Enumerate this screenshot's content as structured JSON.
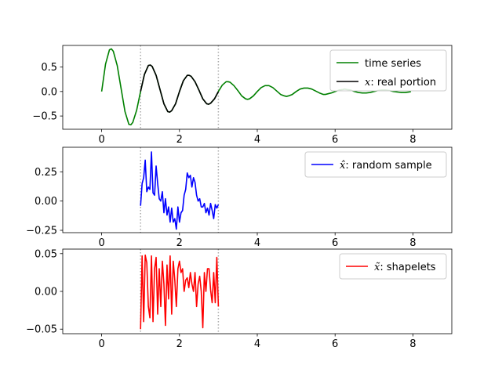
{
  "chart_data": [
    {
      "type": "line",
      "xlim": [
        -1,
        9
      ],
      "ylim": [
        -0.77,
        0.94
      ],
      "xticks": [
        0,
        2,
        4,
        6,
        8
      ],
      "xtick_labels": [
        "0",
        "2",
        "4",
        "6",
        "8"
      ],
      "yticks": [
        -0.5,
        0.0,
        0.5
      ],
      "ytick_labels": [
        "−0.5",
        "0.0",
        "0.5"
      ],
      "vlines": [
        1,
        3
      ],
      "legend_position": "upper right",
      "series": [
        {
          "name": "time series",
          "color": "#008000",
          "x": [
            0,
            0.1,
            0.2,
            0.25,
            0.3,
            0.4,
            0.5,
            0.6,
            0.7,
            0.75,
            0.8,
            0.9,
            1.0,
            1.1,
            1.2,
            1.25,
            1.3,
            1.4,
            1.5,
            1.6,
            1.7,
            1.75,
            1.8,
            1.9,
            2.0,
            2.1,
            2.2,
            2.25,
            2.3,
            2.4,
            2.5,
            2.6,
            2.7,
            2.75,
            2.8,
            2.9,
            3.0,
            3.1,
            3.2,
            3.25,
            3.3,
            3.4,
            3.5,
            3.6,
            3.7,
            3.75,
            3.8,
            3.9,
            4.0,
            4.1,
            4.2,
            4.25,
            4.3,
            4.4,
            4.5,
            4.6,
            4.7,
            4.75,
            4.8,
            4.9,
            5.0,
            5.1,
            5.2,
            5.25,
            5.3,
            5.4,
            5.5,
            5.6,
            5.7,
            5.75,
            5.8,
            5.9,
            6.0,
            6.1,
            6.2,
            6.25,
            6.3,
            6.4,
            6.5,
            6.6,
            6.7,
            6.75,
            6.8,
            6.9,
            7.0,
            7.1,
            7.2,
            7.25,
            7.3,
            7.4,
            7.5,
            7.6,
            7.7,
            7.75,
            7.8,
            7.9,
            7.95
          ],
          "y": [
            0,
            0.56,
            0.85,
            0.87,
            0.82,
            0.53,
            0.06,
            -0.41,
            -0.67,
            -0.68,
            -0.63,
            -0.38,
            0,
            0.35,
            0.53,
            0.54,
            0.51,
            0.33,
            0.04,
            -0.25,
            -0.41,
            -0.42,
            -0.39,
            -0.25,
            0,
            0.22,
            0.33,
            0.33,
            0.31,
            0.2,
            0.03,
            -0.15,
            -0.25,
            -0.26,
            -0.24,
            -0.15,
            0,
            0.13,
            0.2,
            0.2,
            0.19,
            0.12,
            0.02,
            -0.09,
            -0.15,
            -0.16,
            -0.15,
            -0.09,
            0,
            0.08,
            0.12,
            0.12,
            0.12,
            0.08,
            0.01,
            -0.06,
            -0.09,
            -0.1,
            -0.09,
            -0.06,
            0,
            0.05,
            0.07,
            0.07,
            0.07,
            0.05,
            0.01,
            -0.03,
            -0.06,
            -0.06,
            -0.05,
            -0.03,
            0,
            0.03,
            0.04,
            0.05,
            0.04,
            0.03,
            0,
            -0.02,
            -0.03,
            -0.03,
            -0.03,
            -0.02,
            0,
            0.02,
            0.03,
            0.03,
            0.03,
            0.02,
            0,
            -0.01,
            -0.02,
            -0.02,
            -0.02,
            -0.01,
            0
          ]
        },
        {
          "name": "$x$: real portion",
          "color": "#000000",
          "x": [
            1.0,
            1.1,
            1.2,
            1.25,
            1.3,
            1.4,
            1.5,
            1.6,
            1.7,
            1.75,
            1.8,
            1.9,
            2.0,
            2.1,
            2.2,
            2.25,
            2.3,
            2.4,
            2.5,
            2.6,
            2.7,
            2.75,
            2.8,
            2.9,
            3.0
          ],
          "y": [
            0,
            0.35,
            0.53,
            0.54,
            0.51,
            0.33,
            0.04,
            -0.25,
            -0.41,
            -0.42,
            -0.39,
            -0.25,
            0,
            0.22,
            0.33,
            0.33,
            0.31,
            0.2,
            0.03,
            -0.15,
            -0.25,
            -0.26,
            -0.24,
            -0.15,
            0
          ]
        }
      ],
      "legend_labels": [
        {
          "pre": "time series"
        },
        {
          "math": "x",
          "post": ": real portion"
        }
      ]
    },
    {
      "type": "line",
      "xlim": [
        -1,
        9
      ],
      "ylim": [
        -0.27,
        0.46
      ],
      "xticks": [
        0,
        2,
        4,
        6,
        8
      ],
      "xtick_labels": [
        "0",
        "2",
        "4",
        "6",
        "8"
      ],
      "yticks": [
        -0.25,
        0.0,
        0.25
      ],
      "ytick_labels": [
        "−0.25",
        "0.00",
        "0.25"
      ],
      "vlines": [
        1,
        3
      ],
      "legend_position": "upper right",
      "series": [
        {
          "name": "$\\hat{x}$: random sample",
          "color": "#0000ff",
          "x": [
            1.0,
            1.04,
            1.08,
            1.12,
            1.16,
            1.2,
            1.24,
            1.28,
            1.32,
            1.36,
            1.4,
            1.44,
            1.48,
            1.52,
            1.56,
            1.6,
            1.64,
            1.68,
            1.72,
            1.76,
            1.8,
            1.84,
            1.88,
            1.92,
            1.96,
            2.0,
            2.04,
            2.08,
            2.12,
            2.16,
            2.2,
            2.24,
            2.28,
            2.32,
            2.36,
            2.4,
            2.44,
            2.48,
            2.52,
            2.56,
            2.6,
            2.64,
            2.68,
            2.72,
            2.76,
            2.8,
            2.84,
            2.88,
            2.92,
            2.96,
            3.0
          ],
          "y": [
            -0.04,
            0.15,
            0.2,
            0.35,
            0.08,
            0.12,
            0.1,
            0.42,
            0.07,
            0.05,
            0.3,
            0.15,
            0.02,
            0.0,
            0.08,
            -0.1,
            0.02,
            -0.12,
            -0.05,
            -0.18,
            -0.06,
            -0.18,
            -0.15,
            -0.24,
            -0.05,
            -0.18,
            -0.1,
            -0.08,
            0.05,
            0.1,
            0.24,
            0.2,
            0.22,
            0.12,
            0.2,
            0.16,
            0.05,
            0.0,
            0.02,
            -0.05,
            -0.05,
            -0.02,
            -0.1,
            -0.06,
            -0.12,
            -0.02,
            -0.08,
            -0.15,
            -0.03,
            -0.06,
            -0.03
          ]
        }
      ],
      "legend_labels": [
        {
          "math": "x̂",
          "post": ": random sample"
        }
      ]
    },
    {
      "type": "line",
      "xlim": [
        -1,
        9
      ],
      "ylim": [
        -0.056,
        0.056
      ],
      "xticks": [
        0,
        2,
        4,
        6,
        8
      ],
      "xtick_labels": [
        "0",
        "2",
        "4",
        "6",
        "8"
      ],
      "yticks": [
        -0.05,
        0.0,
        0.05
      ],
      "ytick_labels": [
        "−0.05",
        "0.00",
        "0.05"
      ],
      "vlines": [
        1,
        3
      ],
      "legend_position": "upper right",
      "series": [
        {
          "name": "$\\tilde{x}$: shapelets",
          "color": "#ff0000",
          "x": [
            1.0,
            1.04,
            1.08,
            1.12,
            1.16,
            1.2,
            1.24,
            1.28,
            1.32,
            1.36,
            1.4,
            1.44,
            1.48,
            1.52,
            1.56,
            1.6,
            1.64,
            1.68,
            1.72,
            1.76,
            1.8,
            1.84,
            1.88,
            1.92,
            1.96,
            2.0,
            2.04,
            2.08,
            2.12,
            2.16,
            2.2,
            2.24,
            2.28,
            2.32,
            2.36,
            2.4,
            2.44,
            2.48,
            2.52,
            2.56,
            2.6,
            2.64,
            2.68,
            2.72,
            2.76,
            2.8,
            2.84,
            2.88,
            2.92,
            2.96,
            3.0
          ],
          "y": [
            -0.05,
            0.047,
            -0.04,
            0.048,
            0.038,
            -0.02,
            -0.035,
            0.047,
            -0.04,
            0.03,
            0.045,
            -0.03,
            0.03,
            -0.02,
            0.04,
            0.01,
            -0.045,
            0.035,
            -0.01,
            0.047,
            -0.03,
            0.04,
            0.015,
            -0.02,
            0.03,
            0.04,
            0.025,
            0.03,
            0.0,
            0.015,
            0.018,
            0.005,
            0.025,
            0.01,
            0.0,
            0.025,
            -0.02,
            0.01,
            0.02,
            0.0,
            -0.048,
            0.025,
            0.0,
            0.03,
            0.03,
            0.002,
            -0.015,
            0.025,
            -0.015,
            0.045,
            -0.02
          ]
        }
      ],
      "legend_labels": [
        {
          "math": "x̃",
          "post": ": shapelets"
        }
      ]
    }
  ]
}
